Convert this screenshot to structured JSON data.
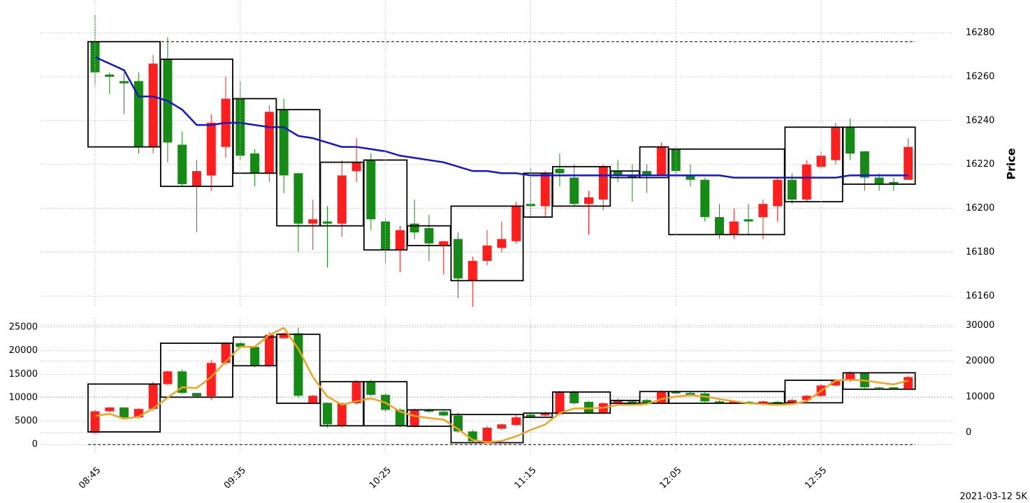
{
  "chart_data": [
    {
      "type": "candlestick",
      "ylabel": "Price",
      "ylim": [
        16155,
        16295
      ],
      "yticks": [
        16160,
        16180,
        16200,
        16220,
        16240,
        16260,
        16280
      ],
      "grid": true,
      "up_color": "#ff1e1e",
      "down_color": "#158a15",
      "reference_line": 16276,
      "open": [
        16276,
        16261,
        16258,
        16258,
        16228,
        16268,
        16229,
        16210,
        16215,
        16228,
        16250,
        16225,
        16216,
        16245,
        16216,
        16193,
        16194,
        16193,
        16217,
        16222,
        16194,
        16181,
        16193,
        16191,
        16183,
        16186,
        16167,
        16176,
        16182,
        16185,
        16202,
        16201,
        16218,
        16214,
        16202,
        16204,
        16217,
        16215,
        16217,
        16215,
        16227,
        16215,
        16213,
        16196,
        16188,
        16195,
        16196,
        16201,
        16213,
        16204,
        16219,
        16222,
        16237,
        16226,
        16214,
        16212,
        16213
      ],
      "high": [
        16288,
        16262,
        16262,
        16262,
        16270,
        16278,
        16235,
        16222,
        16243,
        16260,
        16258,
        16227,
        16247,
        16250,
        16216,
        16204,
        16201,
        16222,
        16232,
        16225,
        16195,
        16192,
        16204,
        16197,
        16185,
        16189,
        16178,
        16190,
        16194,
        16203,
        16218,
        16217,
        16225,
        16220,
        16208,
        16220,
        16222,
        16220,
        16220,
        16230,
        16228,
        16220,
        16214,
        16202,
        16200,
        16202,
        16204,
        16214,
        16216,
        16222,
        16226,
        16239,
        16241,
        16226,
        16216,
        16214,
        16232
      ],
      "low": [
        16256,
        16252,
        16243,
        16225,
        16225,
        16221,
        16210,
        16189,
        16208,
        16223,
        16222,
        16210,
        16212,
        16207,
        16180,
        16181,
        16173,
        16187,
        16212,
        16190,
        16175,
        16171,
        16186,
        16176,
        16170,
        16159,
        16155,
        16174,
        16180,
        16184,
        16196,
        16196,
        16210,
        16201,
        16188,
        16199,
        16212,
        16203,
        16207,
        16215,
        16214,
        16210,
        16194,
        16186,
        16186,
        16188,
        16186,
        16194,
        16202,
        16203,
        16218,
        16220,
        16222,
        16208,
        16208,
        16208,
        16213
      ],
      "close": [
        16262,
        16260,
        16257,
        16228,
        16266,
        16230,
        16211,
        16217,
        16239,
        16250,
        16224,
        16216,
        16244,
        16215,
        16193,
        16195,
        16193,
        16215,
        16221,
        16195,
        16181,
        16190,
        16189,
        16184,
        16185,
        16168,
        16176,
        16183,
        16186,
        16201,
        16201,
        16216,
        16216,
        16202,
        16205,
        16219,
        16215,
        16214,
        16215,
        16228,
        16217,
        16213,
        16196,
        16188,
        16194,
        16194,
        16202,
        16213,
        16204,
        16220,
        16224,
        16237,
        16225,
        16214,
        16211,
        16211,
        16228
      ],
      "line": {
        "color": "#1414c8",
        "values": [
          16269,
          16266,
          16263,
          16251,
          16251,
          16249,
          16245,
          16238,
          16238,
          16239,
          16239,
          16238,
          16237,
          16237,
          16233,
          16232,
          16230,
          16228,
          16228,
          16227,
          16226,
          16224,
          16223,
          16222,
          16221,
          16219,
          16217,
          16217,
          16216,
          16216,
          16215,
          16215,
          16215,
          16215,
          16215,
          16215,
          16215,
          16215,
          16215,
          16215,
          16215,
          16215,
          16215,
          16215,
          16214,
          16214,
          16214,
          16214,
          16214,
          16214,
          16214,
          16214,
          16215,
          16215,
          16215,
          16215,
          16215
        ]
      },
      "boxes": [
        {
          "start": 0,
          "end": 4,
          "high": 16276,
          "low": 16228
        },
        {
          "start": 5,
          "end": 9,
          "high": 16268,
          "low": 16210
        },
        {
          "start": 10,
          "end": 12,
          "high": 16250,
          "low": 16216
        },
        {
          "start": 13,
          "end": 15,
          "high": 16245,
          "low": 16192
        },
        {
          "start": 16,
          "end": 18,
          "high": 16221,
          "low": 16192
        },
        {
          "start": 19,
          "end": 21,
          "high": 16222,
          "low": 16181
        },
        {
          "start": 22,
          "end": 24,
          "high": 16192,
          "low": 16183
        },
        {
          "start": 25,
          "end": 29,
          "high": 16201,
          "low": 16167
        },
        {
          "start": 30,
          "end": 31,
          "high": 16216,
          "low": 16196
        },
        {
          "start": 32,
          "end": 35,
          "high": 16219,
          "low": 16201
        },
        {
          "start": 36,
          "end": 37,
          "high": 16217,
          "low": 16214
        },
        {
          "start": 38,
          "end": 39,
          "high": 16228,
          "low": 16214
        },
        {
          "start": 40,
          "end": 47,
          "high": 16227,
          "low": 16188
        },
        {
          "start": 48,
          "end": 51,
          "high": 16237,
          "low": 16203
        },
        {
          "start": 52,
          "end": 56,
          "high": 16237,
          "low": 16211
        }
      ]
    },
    {
      "type": "candlestick",
      "categories": [
        "08:45",
        null,
        null,
        null,
        null,
        null,
        null,
        null,
        null,
        null,
        "09:35",
        null,
        null,
        null,
        null,
        null,
        null,
        null,
        null,
        null,
        "10:25",
        null,
        null,
        null,
        null,
        null,
        null,
        null,
        null,
        null,
        "11:15",
        null,
        null,
        null,
        null,
        null,
        null,
        null,
        null,
        null,
        "12:05",
        null,
        null,
        null,
        null,
        null,
        null,
        null,
        null,
        null,
        "12:55",
        null,
        null,
        null,
        null,
        null,
        null
      ],
      "ylim": [
        -1900,
        27100
      ],
      "yticks": [
        0,
        5000,
        10000,
        15000,
        20000,
        25000
      ],
      "y2lim": [
        -5800,
        32200
      ],
      "y2ticks": [
        0,
        10000,
        20000,
        30000
      ],
      "grid": true,
      "up_color": "#ff1e1e",
      "down_color": "#158a15",
      "reference_line": 0,
      "open": [
        2500,
        7100,
        7900,
        5800,
        7600,
        12900,
        15600,
        11000,
        10300,
        17400,
        21600,
        20800,
        16800,
        22700,
        23700,
        8900,
        8900,
        4000,
        8800,
        13400,
        10600,
        7400,
        4000,
        7400,
        7000,
        6200,
        2800,
        700,
        3400,
        4200,
        6400,
        6200,
        6500,
        11300,
        9100,
        6800,
        8800,
        9200,
        9500,
        8900,
        11300,
        11000,
        10900,
        9200,
        8800,
        9100,
        8800,
        9100,
        8900,
        9500,
        10400,
        12600,
        13700,
        15200,
        12200,
        12200,
        11900
      ],
      "high": [
        7400,
        8000,
        7900,
        7700,
        13400,
        15800,
        16000,
        11000,
        18000,
        21900,
        21900,
        21000,
        24000,
        23900,
        24900,
        10600,
        9000,
        9000,
        13800,
        13800,
        10900,
        7700,
        7700,
        7600,
        7200,
        6800,
        3200,
        4000,
        4500,
        6300,
        6600,
        7000,
        11500,
        11500,
        9300,
        9000,
        9800,
        9500,
        9700,
        11600,
        11500,
        11300,
        11100,
        9400,
        9400,
        9300,
        9400,
        9300,
        9700,
        10600,
        12900,
        14000,
        15600,
        15400,
        12300,
        12300,
        14700
      ],
      "low": [
        2300,
        7000,
        5600,
        5600,
        7200,
        12700,
        10800,
        10000,
        9500,
        17000,
        20500,
        16500,
        16500,
        22500,
        10000,
        8700,
        3600,
        3600,
        8500,
        10300,
        7000,
        3700,
        3600,
        6800,
        6000,
        2500,
        400,
        400,
        3200,
        4000,
        5700,
        6000,
        6300,
        8500,
        6500,
        6500,
        8600,
        8600,
        8700,
        8700,
        10700,
        10200,
        9000,
        8600,
        8600,
        8700,
        8600,
        8600,
        8700,
        9300,
        10200,
        12400,
        13400,
        12000,
        11900,
        11800,
        11700
      ],
      "close": [
        7100,
        7900,
        5800,
        7600,
        12900,
        15600,
        11000,
        10300,
        17400,
        21600,
        20800,
        16800,
        23400,
        23700,
        10400,
        10400,
        4300,
        8800,
        13400,
        10600,
        7400,
        4000,
        7400,
        7000,
        6200,
        2800,
        700,
        3600,
        4300,
        5800,
        5800,
        6800,
        11300,
        8800,
        6800,
        8800,
        9500,
        8800,
        8900,
        11300,
        10900,
        10400,
        9200,
        8800,
        9200,
        8800,
        9200,
        8800,
        9500,
        10400,
        12600,
        13700,
        15300,
        12200,
        12000,
        11900,
        14400
      ],
      "line": {
        "color": "#f0a31e",
        "axis": "y2",
        "values": [
          4700,
          5300,
          3900,
          4500,
          6800,
          9800,
          12700,
          12500,
          15600,
          19900,
          24000,
          24000,
          27300,
          29300,
          23400,
          15600,
          10100,
          7800,
          8800,
          9600,
          8400,
          5900,
          4700,
          4100,
          3700,
          1000,
          -2000,
          -2700,
          -2300,
          -1000,
          800,
          2300,
          5500,
          6800,
          6800,
          7000,
          7800,
          7800,
          8000,
          9400,
          10100,
          10500,
          10100,
          9400,
          8800,
          8200,
          8000,
          7800,
          8000,
          8800,
          11700,
          14600,
          14800,
          14600,
          14000,
          13500,
          14600
        ]
      },
      "boxes": [
        {
          "start": 0,
          "end": 4,
          "high": 12900,
          "low": 2700
        },
        {
          "start": 5,
          "end": 9,
          "high": 21600,
          "low": 10100
        },
        {
          "start": 10,
          "end": 12,
          "high": 22900,
          "low": 16800
        },
        {
          "start": 13,
          "end": 15,
          "high": 23500,
          "low": 8800
        },
        {
          "start": 16,
          "end": 18,
          "high": 13400,
          "low": 4000
        },
        {
          "start": 19,
          "end": 21,
          "high": 13400,
          "low": 4000
        },
        {
          "start": 22,
          "end": 24,
          "high": 7400,
          "low": 3900
        },
        {
          "start": 25,
          "end": 29,
          "high": 6400,
          "low": 400
        },
        {
          "start": 30,
          "end": 31,
          "high": 6700,
          "low": 5800
        },
        {
          "start": 32,
          "end": 35,
          "high": 11200,
          "low": 6700
        },
        {
          "start": 36,
          "end": 37,
          "high": 9400,
          "low": 8800
        },
        {
          "start": 38,
          "end": 39,
          "high": 11300,
          "low": 8800
        },
        {
          "start": 40,
          "end": 47,
          "high": 11300,
          "low": 8800
        },
        {
          "start": 48,
          "end": 51,
          "high": 13700,
          "low": 8900
        },
        {
          "start": 52,
          "end": 56,
          "high": 15300,
          "low": 11800
        }
      ]
    }
  ],
  "footer": "2021-03-12 5K"
}
